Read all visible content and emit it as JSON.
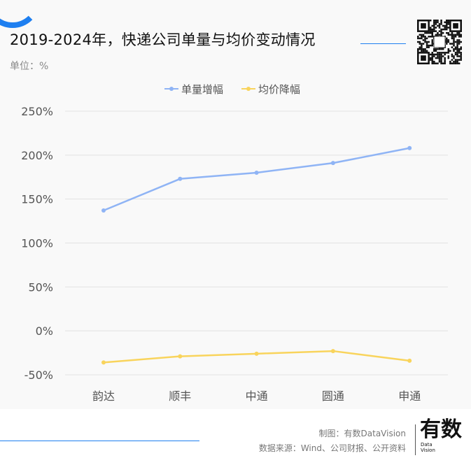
{
  "header": {
    "title": "2019-2024年，快递公司单量与均价变动情况",
    "unit": "单位：%"
  },
  "footer": {
    "credit": "制图：有数DataVision",
    "source": "数据来源：Wind、公司财报、公开资料",
    "logo": "有数",
    "logo_sub": "Data Vision"
  },
  "chart_data": {
    "type": "line",
    "title": "2019-2024年，快递公司单量与均价变动情况",
    "ylabel": "单位：%",
    "categories": [
      "韵达",
      "顺丰",
      "中通",
      "圆通",
      "申通"
    ],
    "ylim": [
      -50,
      250
    ],
    "yticks": [
      250,
      200,
      150,
      100,
      50,
      0,
      -50
    ],
    "ytick_labels": [
      "250%",
      "200%",
      "150%",
      "100%",
      "50%",
      "0%",
      "-50%"
    ],
    "grid": true,
    "legend": "top",
    "series": [
      {
        "name": "单量增幅",
        "color": "#8fb4f5",
        "values": [
          137,
          173,
          180,
          191,
          208
        ]
      },
      {
        "name": "均价降幅",
        "color": "#f9d45c",
        "values": [
          -36,
          -29,
          -26,
          -23,
          -34
        ]
      }
    ]
  }
}
